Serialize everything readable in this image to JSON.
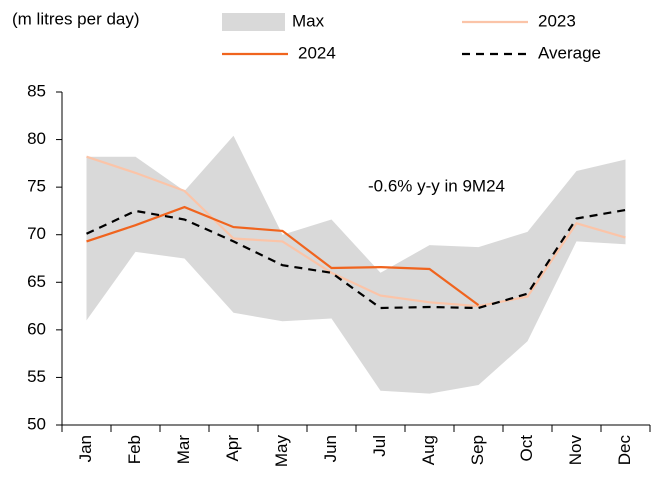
{
  "chart_data": {
    "type": "line",
    "title": "(m litres per day)",
    "annotation": "-0.6% y-y in 9M24",
    "categories": [
      "Jan",
      "Feb",
      "Mar",
      "Apr",
      "May",
      "Jun",
      "Jul",
      "Aug",
      "Sep",
      "Oct",
      "Nov",
      "Dec"
    ],
    "series": [
      {
        "name": "Max",
        "color": "#d9d9d9",
        "band": true,
        "values": [
          78.2,
          78.2,
          74.6,
          80.4,
          70.0,
          71.6,
          66.0,
          68.9,
          68.7,
          70.3,
          76.7,
          77.9
        ],
        "low": [
          61.0,
          68.2,
          67.5,
          61.8,
          60.9,
          61.2,
          53.6,
          53.3,
          54.2,
          58.8,
          69.3,
          69.0
        ]
      },
      {
        "name": "2023",
        "color": "#fbc4a8",
        "values": [
          78.2,
          76.5,
          74.6,
          69.6,
          69.3,
          66.0,
          63.6,
          62.9,
          62.5,
          63.5,
          71.2,
          69.7
        ]
      },
      {
        "name": "2024",
        "color": "#f0641e",
        "values": [
          69.3,
          71.0,
          72.9,
          70.8,
          70.4,
          66.5,
          66.6,
          66.4,
          62.6,
          null,
          null,
          null
        ]
      },
      {
        "name": "Average",
        "color": "#000000",
        "dashed": true,
        "values": [
          70.1,
          72.5,
          71.6,
          69.3,
          66.8,
          66.0,
          62.3,
          62.4,
          62.3,
          63.8,
          71.7,
          72.6
        ]
      }
    ],
    "ylim": [
      50,
      85
    ],
    "yticks": [
      50,
      55,
      60,
      65,
      70,
      75,
      80,
      85
    ]
  }
}
